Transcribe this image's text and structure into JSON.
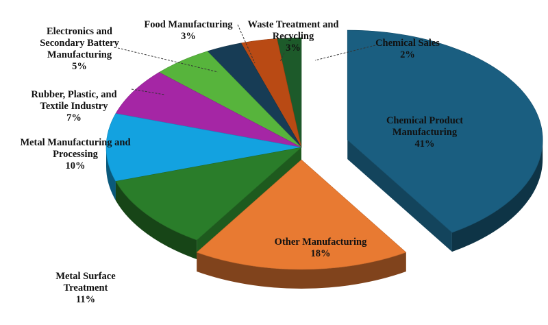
{
  "chart_data": {
    "type": "pie",
    "style": "3d-exploded",
    "slices": [
      {
        "label": "Chemical Product Manufacturing",
        "label_lines": [
          "Chemical Product",
          "Manufacturing"
        ],
        "value": 41,
        "value_label": "41%",
        "color": "#1a5e80",
        "label_placement": "inside"
      },
      {
        "label": "Other Manufacturing",
        "label_lines": [
          "Other Manufacturing"
        ],
        "value": 18,
        "value_label": "18%",
        "color": "#e87a32",
        "label_placement": "inside"
      },
      {
        "label": "Metal Surface Treatment",
        "label_lines": [
          "Metal Surface",
          "Treatment"
        ],
        "value": 11,
        "value_label": "11%",
        "color": "#2a7d2a",
        "label_placement": "outside"
      },
      {
        "label": "Metal Manufacturing and Processing",
        "label_lines": [
          "Metal Manufacturing and",
          "Processing"
        ],
        "value": 10,
        "value_label": "10%",
        "color": "#13a2e0",
        "label_placement": "outside"
      },
      {
        "label": "Rubber, Plastic, and Textile Industry",
        "label_lines": [
          "Rubber, Plastic, and",
          "Textile Industry"
        ],
        "value": 7,
        "value_label": "7%",
        "color": "#a526a5",
        "label_placement": "outside"
      },
      {
        "label": "Electronics and Secondary Battery Manufacturing",
        "label_lines": [
          "Electronics and",
          "Secondary Battery",
          "Manufacturing"
        ],
        "value": 5,
        "value_label": "5%",
        "color": "#57b43c",
        "label_placement": "outside"
      },
      {
        "label": "Food Manufacturing",
        "label_lines": [
          "Food Manufacturing"
        ],
        "value": 3,
        "value_label": "3%",
        "color": "#173c55",
        "label_placement": "outside"
      },
      {
        "label": "Waste Treatment and Recycling",
        "label_lines": [
          "Waste Treatment and",
          "Recycling"
        ],
        "value": 3,
        "value_label": "3%",
        "color": "#b94a14",
        "label_placement": "outside"
      },
      {
        "label": "Chemical Sales",
        "label_lines": [
          "Chemical Sales"
        ],
        "value": 2,
        "value_label": "2%",
        "color": "#1d5a2a",
        "label_placement": "outside"
      }
    ]
  }
}
